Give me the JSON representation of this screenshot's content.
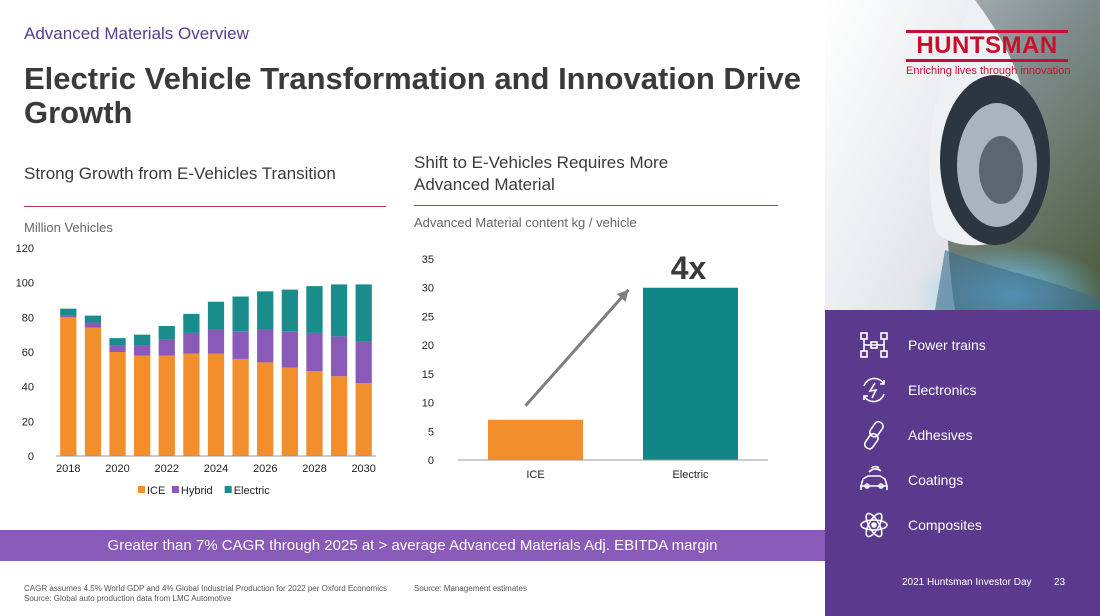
{
  "header": {
    "subtitle": "Advanced Materials Overview",
    "title": "Electric Vehicle Transformation and Innovation Drive Growth"
  },
  "left_section": {
    "heading": "Strong Growth from E-Vehicles Transition",
    "unit": "Million Vehicles"
  },
  "right_section": {
    "heading_line1": "Shift to E-Vehicles Requires More",
    "heading_line2": "Advanced Material",
    "unit": "Advanced Material content kg / vehicle",
    "multiplier": "4x"
  },
  "band": {
    "text": "Greater than 7% CAGR through 2025 at > average Advanced Materials Adj. EBITDA margin"
  },
  "footnotes": {
    "left_line1": "CAGR assumes 4.5% World GDP and 4% Global Industrial Production for 2022 per Oxford Economics",
    "left_line2": "Source: Global auto production data from LMC Automotive",
    "right": "Source: Management estimates"
  },
  "brand": {
    "name": "HUNTSMAN",
    "tagline": "Enriching lives through innovation",
    "red": "#c8102e",
    "purple": "#5b3a8e"
  },
  "categories": [
    {
      "label": "Power trains",
      "icon": "powertrain-icon"
    },
    {
      "label": "Electronics",
      "icon": "electronics-icon"
    },
    {
      "label": "Adhesives",
      "icon": "adhesives-icon"
    },
    {
      "label": "Coatings",
      "icon": "coatings-icon"
    },
    {
      "label": "Composites",
      "icon": "composites-icon"
    }
  ],
  "footer": {
    "event": "2021 Huntsman Investor Day",
    "page": "23"
  },
  "chart_data": [
    {
      "type": "bar",
      "stacked": true,
      "categories": [
        "2018",
        "2019",
        "2020",
        "2021",
        "2022",
        "2023",
        "2024",
        "2025",
        "2026",
        "2027",
        "2028",
        "2029",
        "2030"
      ],
      "x_tick_labels": [
        "2018",
        "2020",
        "2022",
        "2024",
        "2026",
        "2028",
        "2030"
      ],
      "series": [
        {
          "name": "ICE",
          "color": "#f28e2b",
          "values": [
            80,
            74,
            60,
            58,
            58,
            59,
            59,
            56,
            54,
            51,
            49,
            46,
            42
          ]
        },
        {
          "name": "Hybrid",
          "color": "#8a5ab8",
          "values": [
            1,
            3,
            4,
            6,
            9,
            12,
            14,
            16,
            19,
            21,
            22,
            23,
            24
          ]
        },
        {
          "name": "Electric",
          "color": "#1a8c8c",
          "values": [
            4,
            4,
            4,
            6,
            8,
            11,
            16,
            20,
            22,
            24,
            27,
            30,
            33
          ]
        }
      ],
      "ylim": [
        0,
        120
      ],
      "yticks": [
        0,
        20,
        40,
        60,
        80,
        100,
        120
      ],
      "legend": "bottom"
    },
    {
      "type": "bar",
      "categories": [
        "ICE",
        "Electric"
      ],
      "values": [
        7,
        30
      ],
      "colors": [
        "#f28e2b",
        "#0f8585"
      ],
      "ylim": [
        0,
        35
      ],
      "yticks": [
        0,
        5,
        10,
        15,
        20,
        25,
        30,
        35
      ]
    }
  ]
}
